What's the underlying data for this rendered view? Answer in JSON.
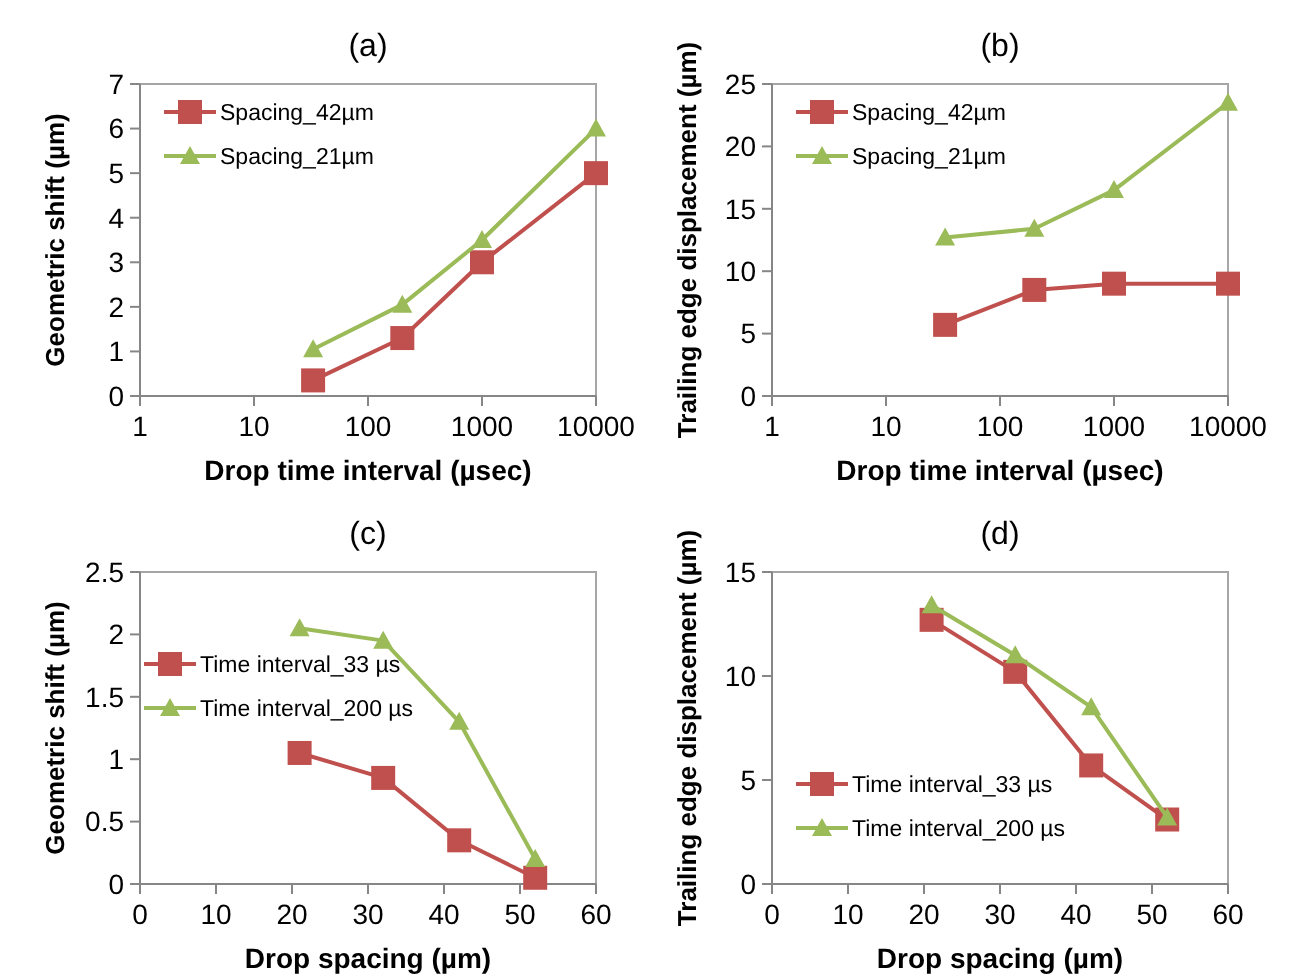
{
  "chart_data": [
    {
      "type": "line",
      "title": "(a)",
      "xlabel": "Drop time interval (µsec)",
      "ylabel": "Geometric shift (µm)",
      "log": "x",
      "xlim": [
        1,
        10000
      ],
      "xticks": [
        1,
        10,
        100,
        1000,
        10000
      ],
      "ylim": [
        0,
        7
      ],
      "yticks": [
        0,
        1,
        2,
        3,
        4,
        5,
        6,
        7
      ],
      "x": [
        33,
        200,
        1000,
        10000
      ],
      "legend": "top left",
      "grid": false,
      "series": [
        {
          "name": "Spacing_42µm",
          "color": "#c0504d",
          "marker": "square",
          "values": [
            0.35,
            1.3,
            3.0,
            5.0
          ]
        },
        {
          "name": "Spacing_21µm",
          "color": "#9bbb59",
          "marker": "triangle",
          "values": [
            1.05,
            2.05,
            3.5,
            6.0
          ]
        }
      ]
    },
    {
      "type": "line",
      "title": "(b)",
      "xlabel": "Drop time interval (µsec)",
      "ylabel": "Trailing edge displacement (µm)",
      "log": "x",
      "xlim": [
        1,
        10000
      ],
      "xticks": [
        1,
        10,
        100,
        1000,
        10000
      ],
      "ylim": [
        0,
        25
      ],
      "yticks": [
        0,
        5,
        10,
        15,
        20,
        25
      ],
      "x": [
        33,
        200,
        1000,
        10000
      ],
      "legend": "top left",
      "grid": false,
      "series": [
        {
          "name": "Spacing_42µm",
          "color": "#c0504d",
          "marker": "square",
          "values": [
            5.7,
            8.5,
            9.0,
            9.0
          ]
        },
        {
          "name": "Spacing_21µm",
          "color": "#9bbb59",
          "marker": "triangle",
          "values": [
            12.7,
            13.4,
            16.5,
            23.5
          ]
        }
      ]
    },
    {
      "type": "line",
      "title": "(c)",
      "xlabel": "Drop spacing (µm)",
      "ylabel": "Geometric shift (µm)",
      "xlim": [
        0,
        60
      ],
      "xticks": [
        0,
        10,
        20,
        30,
        40,
        50,
        60
      ],
      "ylim": [
        0,
        2.5
      ],
      "yticks": [
        0,
        0.5,
        1,
        1.5,
        2,
        2.5
      ],
      "x": [
        21,
        32,
        42,
        52
      ],
      "legend": "left",
      "grid": false,
      "series": [
        {
          "name": "Time interval_33 µs",
          "color": "#c0504d",
          "marker": "square",
          "values": [
            1.05,
            0.85,
            0.35,
            0.05
          ]
        },
        {
          "name": "Time interval_200 µs",
          "color": "#9bbb59",
          "marker": "triangle",
          "values": [
            2.05,
            1.95,
            1.3,
            0.2
          ]
        }
      ]
    },
    {
      "type": "line",
      "title": "(d)",
      "xlabel": "Drop spacing (µm)",
      "ylabel": "Trailing edge displacement (µm)",
      "xlim": [
        0,
        60
      ],
      "xticks": [
        0,
        10,
        20,
        30,
        40,
        50,
        60
      ],
      "ylim": [
        0,
        15
      ],
      "yticks": [
        0,
        5,
        10,
        15
      ],
      "x": [
        21,
        32,
        42,
        52
      ],
      "legend": "bottom left",
      "grid": false,
      "series": [
        {
          "name": "Time interval_33 µs",
          "color": "#c0504d",
          "marker": "square",
          "values": [
            12.7,
            10.2,
            5.7,
            3.1
          ]
        },
        {
          "name": "Time interval_200 µs",
          "color": "#9bbb59",
          "marker": "triangle",
          "values": [
            13.4,
            11.0,
            8.5,
            3.2
          ]
        }
      ]
    }
  ]
}
